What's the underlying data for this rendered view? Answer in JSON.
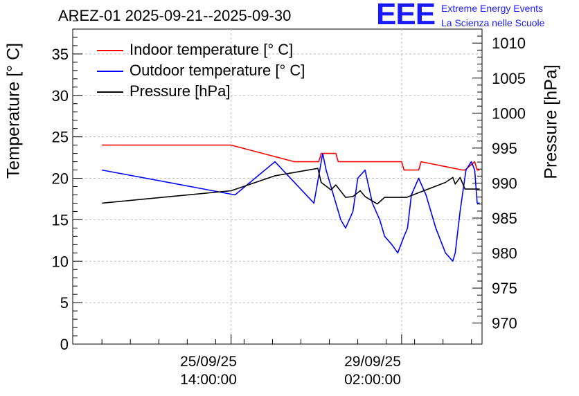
{
  "header": {
    "title": "AREZ-01 2025-09-21--2025-09-30",
    "logo_text": "EEE",
    "logo_line1": "Extreme Energy Events",
    "logo_line2": "La Scienza nelle Scuole"
  },
  "colors": {
    "indoor": "#ff0000",
    "outdoor": "#0000ff",
    "pressure": "#000000",
    "logo": "#1a1aff",
    "grid": "#bdbdbd"
  },
  "chart_data": {
    "type": "line",
    "title": "AREZ-01 2025-09-21--2025-09-30",
    "ylabel_left": "Temperature [° C]",
    "ylabel_right": "Pressure [hPa]",
    "ylim_left": [
      0,
      38
    ],
    "ylim_right": [
      967,
      1012
    ],
    "yticks_left": [
      "0",
      "5",
      "10",
      "15",
      "20",
      "25",
      "30",
      "35"
    ],
    "yticks_right": [
      "970",
      "975",
      "980",
      "985",
      "990",
      "995",
      "1000",
      "1005",
      "1010"
    ],
    "xticks": [
      {
        "t": 4.0,
        "date": "25/09/25",
        "time": "14:00:00"
      },
      {
        "t": 7.5,
        "date": "29/09/25",
        "time": "02:00:00"
      }
    ],
    "xlim": [
      0.75,
      9.15
    ],
    "legend": [
      {
        "key": "indoor",
        "label": "Indoor temperature [° C]"
      },
      {
        "key": "outdoor",
        "label": "Outdoor temperature [° C]"
      },
      {
        "key": "pressure",
        "label": "Pressure [hPa]"
      }
    ],
    "series": [
      {
        "name": "Indoor temperature [° C]",
        "axis": "left",
        "x": [
          1.35,
          4.0,
          5.3,
          5.8,
          5.85,
          6.15,
          6.2,
          7.5,
          7.55,
          7.85,
          7.9,
          8.75,
          8.8,
          9.0,
          9.05,
          9.1
        ],
        "y": [
          24,
          24,
          22,
          22,
          23,
          23,
          22,
          22,
          21,
          21,
          22,
          21,
          21,
          22,
          21,
          21
        ]
      },
      {
        "name": "Outdoor temperature [° C]",
        "axis": "left",
        "x": [
          1.35,
          4.08,
          4.9,
          5.7,
          5.82,
          5.88,
          5.95,
          6.1,
          6.25,
          6.35,
          6.5,
          6.6,
          6.75,
          6.9,
          7.05,
          7.15,
          7.3,
          7.42,
          7.55,
          7.62,
          7.7,
          7.85,
          8.0,
          8.2,
          8.4,
          8.55,
          8.6,
          8.7,
          8.82,
          8.93,
          9.0,
          9.05,
          9.1
        ],
        "y": [
          21,
          18,
          22,
          17,
          21,
          23,
          21,
          18,
          15,
          14,
          16,
          20,
          21,
          17,
          15,
          13,
          12,
          11,
          13,
          14,
          18,
          20,
          18,
          14,
          11,
          10,
          11,
          16,
          21,
          22,
          21,
          17,
          17
        ]
      },
      {
        "name": "Pressure [hPa]",
        "axis": "left",
        "x": [
          1.35,
          4.0,
          4.9,
          5.78,
          5.85,
          6.05,
          6.15,
          6.35,
          6.5,
          6.65,
          6.75,
          7.0,
          7.15,
          7.6,
          8.4,
          8.55,
          8.6,
          8.7,
          8.8,
          9.1
        ],
        "y": [
          17,
          18.5,
          20.3,
          21.2,
          19.5,
          18.6,
          19.2,
          17.7,
          17.8,
          18.5,
          17.8,
          16.9,
          17.7,
          17.7,
          19.5,
          20.1,
          19.3,
          20.1,
          18.7,
          18.7
        ]
      }
    ]
  }
}
